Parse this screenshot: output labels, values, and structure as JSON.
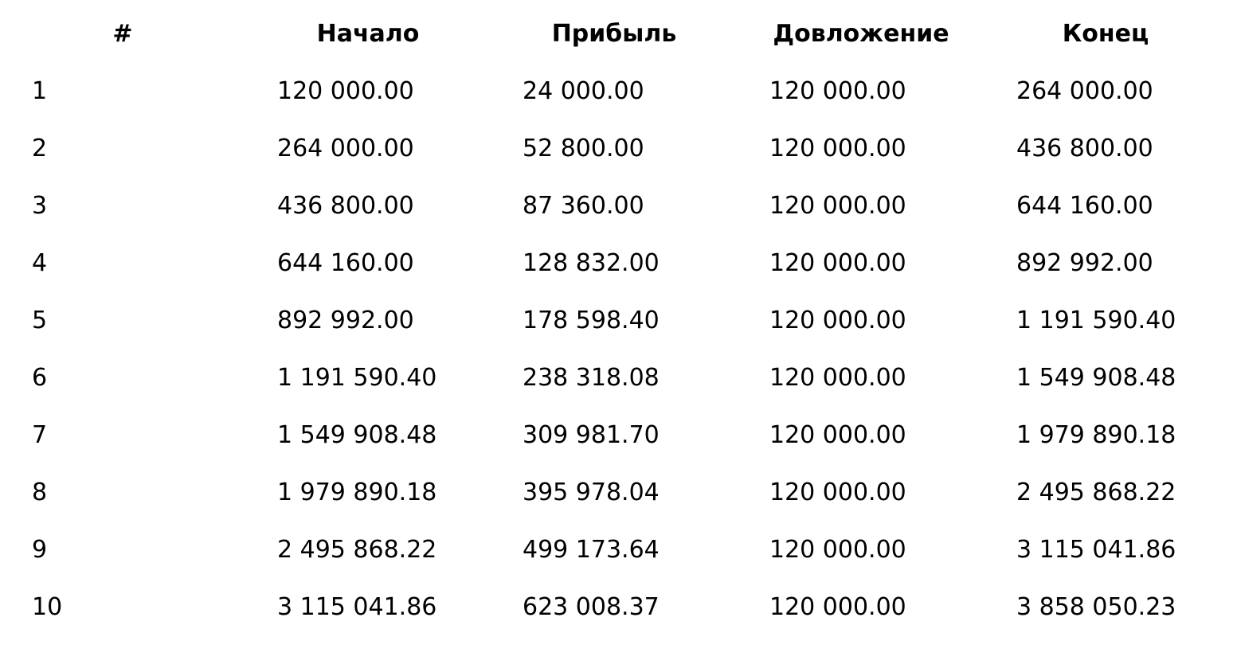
{
  "table": {
    "columns": [
      "#",
      "Начало",
      "Прибыль",
      "Довложение",
      "Конец"
    ],
    "rows": [
      [
        "1",
        "120 000.00",
        "24 000.00",
        "120 000.00",
        "264 000.00"
      ],
      [
        "2",
        "264 000.00",
        "52 800.00",
        "120 000.00",
        "436 800.00"
      ],
      [
        "3",
        "436 800.00",
        "87 360.00",
        "120 000.00",
        "644 160.00"
      ],
      [
        "4",
        "644 160.00",
        "128 832.00",
        "120 000.00",
        "892 992.00"
      ],
      [
        "5",
        "892 992.00",
        "178 598.40",
        "120 000.00",
        "1 191 590.40"
      ],
      [
        "6",
        "1 191 590.40",
        "238 318.08",
        "120 000.00",
        "1 549 908.48"
      ],
      [
        "7",
        "1 549 908.48",
        "309 981.70",
        "120 000.00",
        "1 979 890.18"
      ],
      [
        "8",
        "1 979 890.18",
        "395 978.04",
        "120 000.00",
        "2 495 868.22"
      ],
      [
        "9",
        "2 495 868.22",
        "499 173.64",
        "120 000.00",
        "3 115 041.86"
      ],
      [
        "10",
        "3 115 041.86",
        "623 008.37",
        "120 000.00",
        "3 858 050.23"
      ]
    ]
  }
}
